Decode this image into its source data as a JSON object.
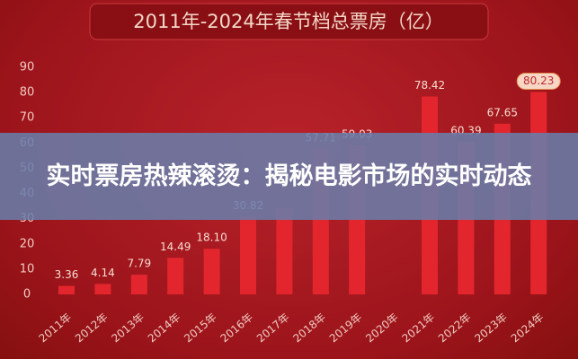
{
  "chart_data": {
    "type": "bar",
    "title": "2011年-2024年春节档总票房（亿）",
    "categories": [
      "2011年",
      "2012年",
      "2013年",
      "2014年",
      "2015年",
      "2016年",
      "2017年",
      "2018年",
      "2019年",
      "2020年",
      "2021年",
      "2022年",
      "2023年",
      "2024年"
    ],
    "values": [
      3.36,
      4.14,
      7.79,
      14.49,
      18.1,
      30.82,
      34,
      57.71,
      59.03,
      null,
      78.42,
      60.39,
      67.65,
      80.23
    ],
    "value_labels": [
      "3.36",
      "4.14",
      "7.79",
      "14.49",
      "18.10",
      "30.82",
      null,
      "57.71",
      "59.03",
      null,
      "78.42",
      "60.39",
      "67.65",
      "80.23"
    ],
    "color": "#e3262d",
    "ylim": [
      0,
      90
    ],
    "yticks": [
      0,
      10,
      20,
      30,
      40,
      50,
      60,
      70,
      80,
      90
    ],
    "grid": false
  },
  "banner": {
    "title": "实时票房热辣滚烫：揭秘电影市场的实时动态"
  }
}
